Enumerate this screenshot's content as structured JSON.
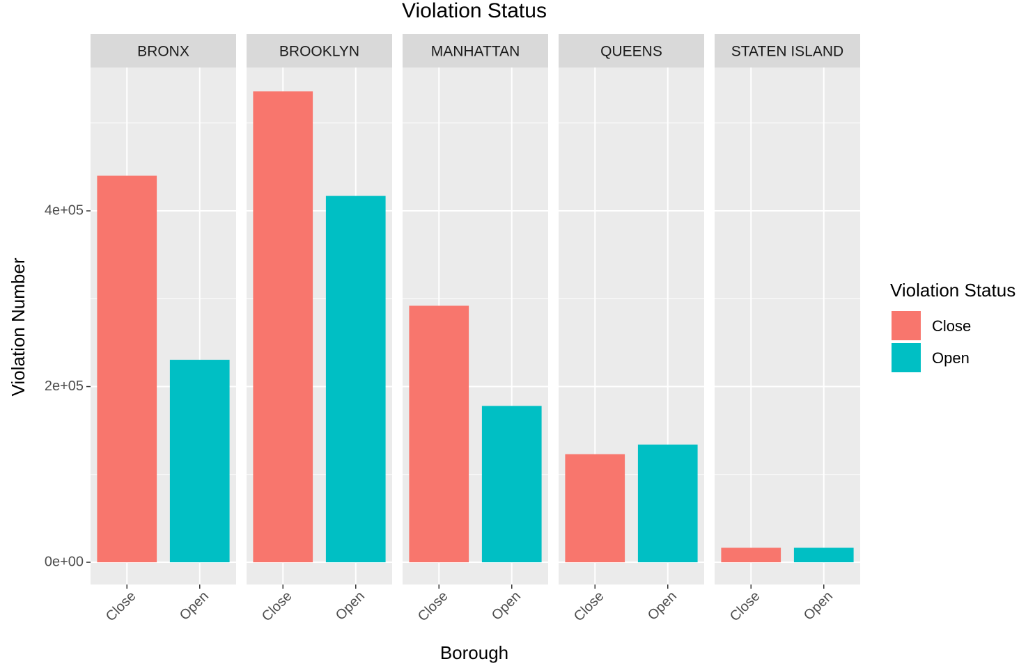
{
  "chart_data": {
    "type": "bar",
    "title": "Violation Status",
    "x_label": "Borough",
    "y_label": "Violation Number",
    "legend_title": "Violation Status",
    "facets": [
      "BRONX",
      "BROOKLYN",
      "MANHATTAN",
      "QUEENS",
      "STATEN ISLAND"
    ],
    "series": [
      {
        "name": "Close",
        "color": "#f8766d",
        "values": [
          440000,
          536000,
          292000,
          123000,
          16600
        ]
      },
      {
        "name": "Open",
        "color": "#00bfc4",
        "values": [
          230500,
          417000,
          178000,
          134000,
          16600
        ]
      }
    ],
    "ylim": [
      -25300,
      563200
    ],
    "yticks": [
      {
        "value": 0,
        "label": "0e+00"
      },
      {
        "value": 200000,
        "label": "2e+05"
      },
      {
        "value": 400000,
        "label": "4e+05"
      }
    ],
    "yminor": [
      100000,
      300000,
      500000
    ],
    "grid": true,
    "legend": "right"
  }
}
